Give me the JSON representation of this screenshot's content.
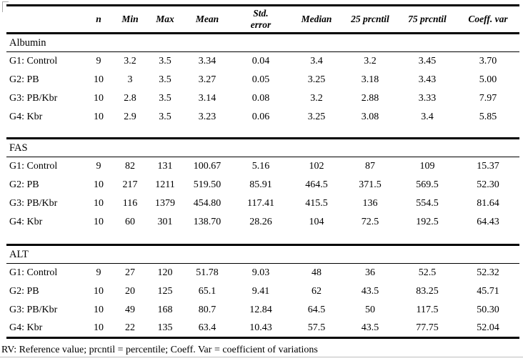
{
  "table": {
    "headers": [
      "",
      "n",
      "Min",
      "Max",
      "Mean",
      "Std.\nerror",
      "Median",
      "25 prcntil",
      "75 prcntil",
      "Coeff. var"
    ],
    "sections": [
      {
        "name": "Albumin",
        "rows": [
          {
            "label": "G1: Control",
            "values": [
              "9",
              "3.2",
              "3.5",
              "3.34",
              "0.04",
              "3.4",
              "3.2",
              "3.45",
              "3.70"
            ]
          },
          {
            "label": "G2: PB",
            "values": [
              "10",
              "3",
              "3.5",
              "3.27",
              "0.05",
              "3.25",
              "3.18",
              "3.43",
              "5.00"
            ]
          },
          {
            "label": "G3: PB/Kbr",
            "values": [
              "10",
              "2.8",
              "3.5",
              "3.14",
              "0.08",
              "3.2",
              "2.88",
              "3.33",
              "7.97"
            ]
          },
          {
            "label": "G4: Kbr",
            "values": [
              "10",
              "2.9",
              "3.5",
              "3.23",
              "0.06",
              "3.25",
              "3.08",
              "3.4",
              "5.85"
            ]
          }
        ]
      },
      {
        "name": "FAS",
        "rows": [
          {
            "label": "G1: Control",
            "values": [
              "9",
              "82",
              "131",
              "100.67",
              "5.16",
              "102",
              "87",
              "109",
              "15.37"
            ]
          },
          {
            "label": "G2: PB",
            "values": [
              "10",
              "217",
              "1211",
              "519.50",
              "85.91",
              "464.5",
              "371.5",
              "569.5",
              "52.30"
            ]
          },
          {
            "label": "G3: PB/Kbr",
            "values": [
              "10",
              "116",
              "1379",
              "454.80",
              "117.41",
              "415.5",
              "136",
              "554.5",
              "81.64"
            ]
          },
          {
            "label": "G4: Kbr",
            "values": [
              "10",
              "60",
              "301",
              "138.70",
              "28.26",
              "104",
              "72.5",
              "192.5",
              "64.43"
            ]
          }
        ]
      },
      {
        "name": "ALT",
        "rows": [
          {
            "label": "G1: Control",
            "values": [
              "9",
              "27",
              "120",
              "51.78",
              "9.03",
              "48",
              "36",
              "52.5",
              "52.32"
            ]
          },
          {
            "label": "G2: PB",
            "values": [
              "10",
              "20",
              "125",
              "65.1",
              "9.41",
              "62",
              "43.5",
              "83.25",
              "45.71"
            ]
          },
          {
            "label": "G3: PB/Kbr",
            "values": [
              "10",
              "49",
              "168",
              "80.7",
              "12.84",
              "64.5",
              "50",
              "117.5",
              "50.30"
            ]
          },
          {
            "label": "G4: Kbr",
            "values": [
              "10",
              "22",
              "135",
              "63.4",
              "10.43",
              "57.5",
              "43.5",
              "77.75",
              "52.04"
            ]
          }
        ]
      }
    ],
    "footnote": "RV: Reference value; prcntil = percentile; Coeff. Var = coefficient of variations"
  },
  "colors": {
    "rule_black": "#000000",
    "artifact_gray": "#ababab",
    "page_boundary_gray": "#bdbdbd"
  }
}
